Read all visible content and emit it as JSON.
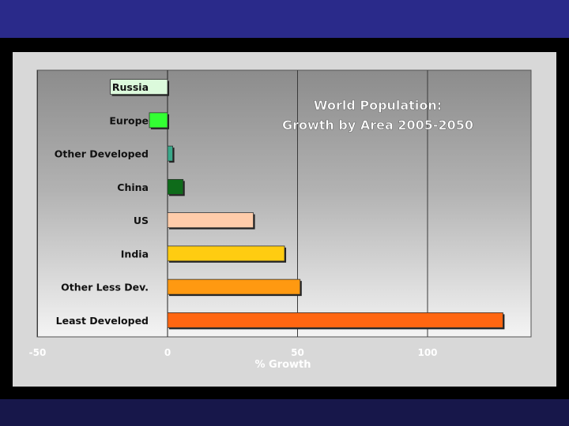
{
  "chart_data": {
    "type": "bar",
    "orientation": "horizontal",
    "title_lines": [
      "World Population:",
      "Growth by Area 2005-2050"
    ],
    "xlabel": "% Growth",
    "ylabel": "",
    "xlim": [
      -50,
      140
    ],
    "xticks": [
      -50,
      0,
      50,
      100
    ],
    "grid": true,
    "categories": [
      "Russia",
      "Europe",
      "Other Developed",
      "China",
      "US",
      "India",
      "Other Less Dev.",
      "Least Developed"
    ],
    "values": [
      -22,
      -7,
      2,
      6,
      33,
      45,
      51,
      129
    ],
    "colors": [
      "#dcfadc",
      "#33ff33",
      "#3aa88a",
      "#0e6b1a",
      "#ffccaa",
      "#ffcc11",
      "#ff9911",
      "#ff6611"
    ]
  }
}
